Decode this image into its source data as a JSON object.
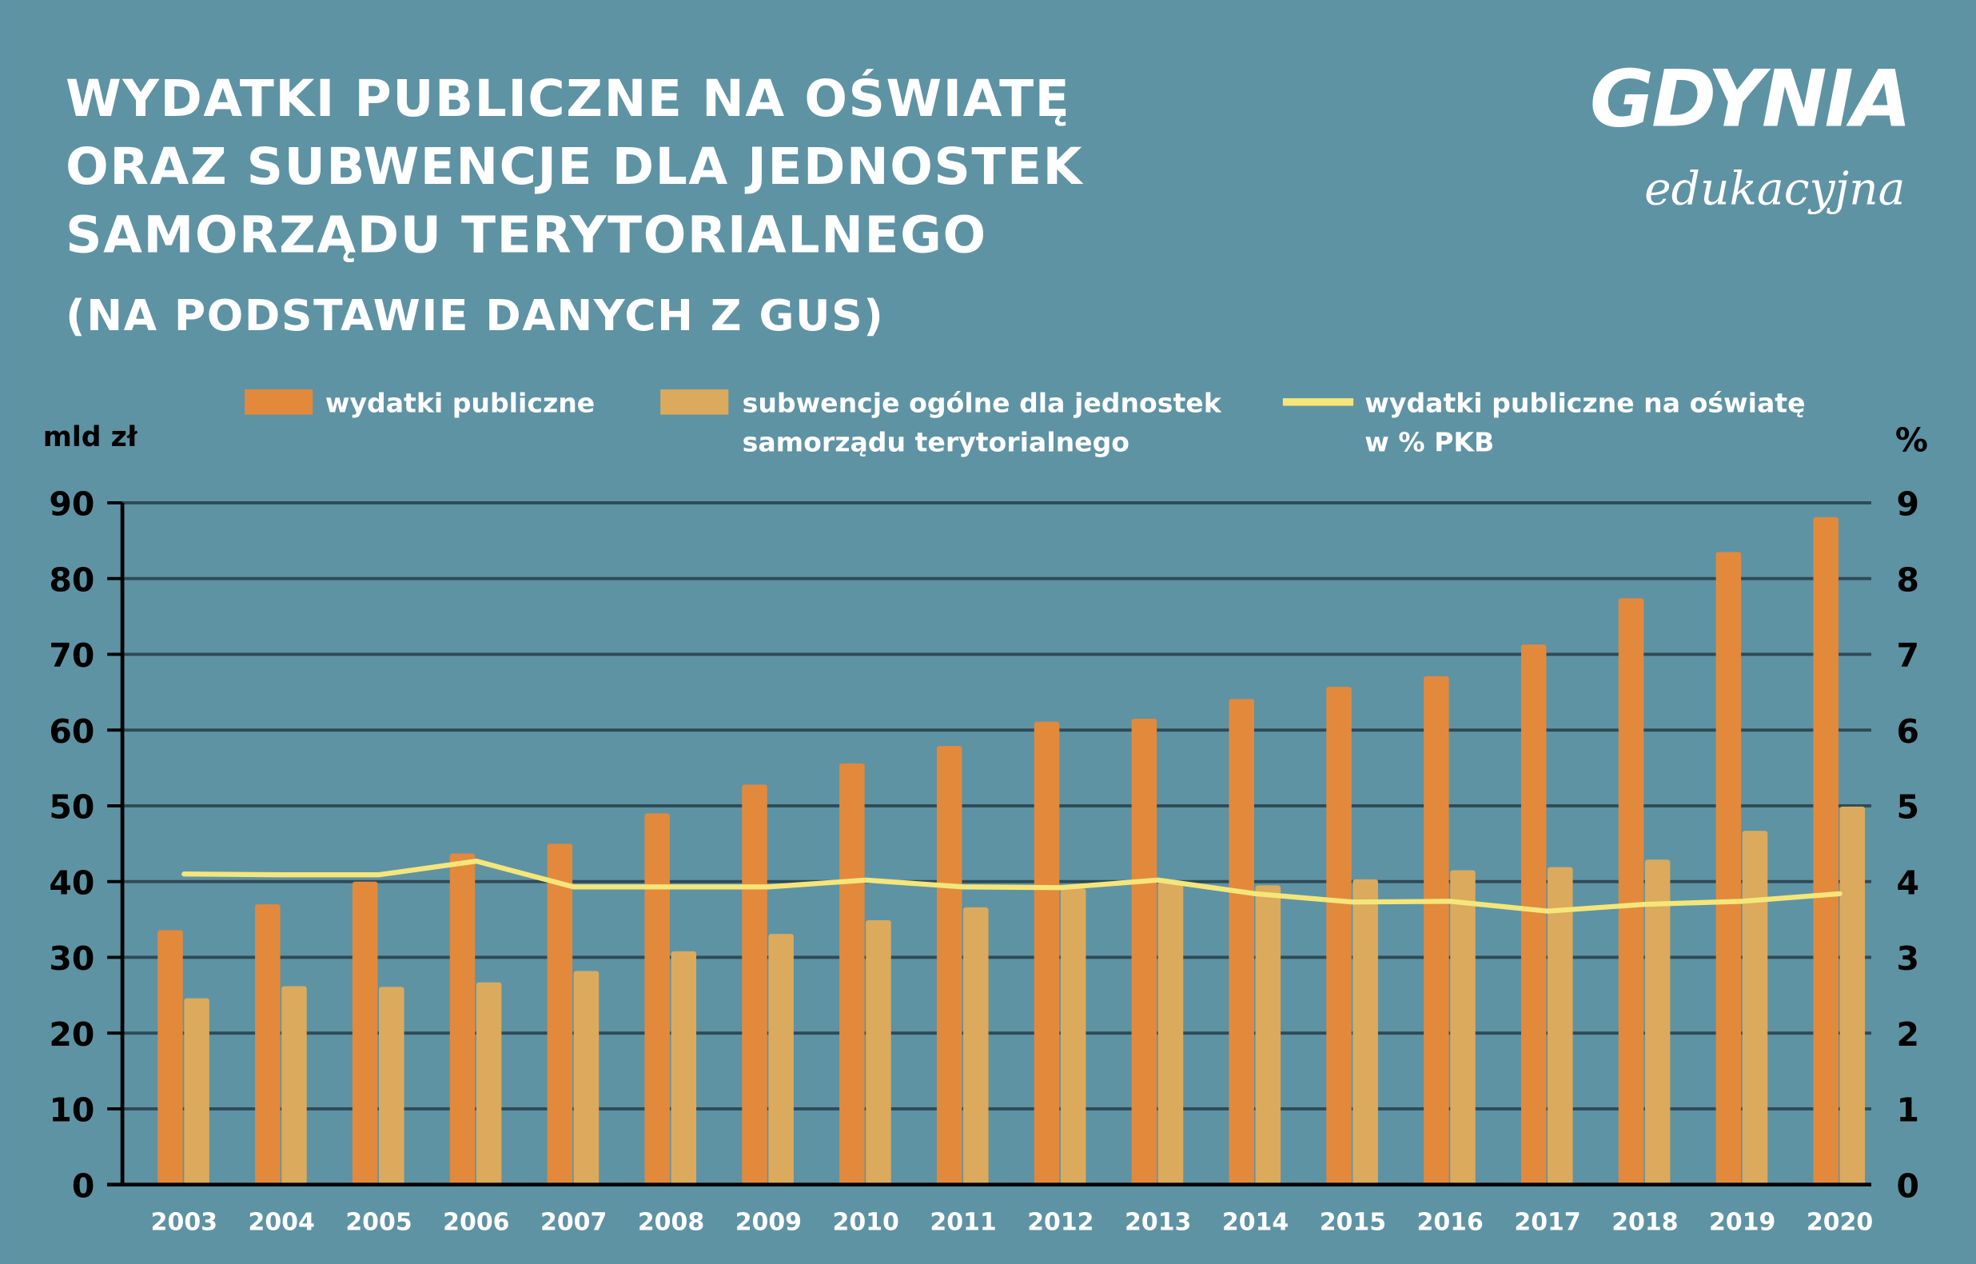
{
  "title_lines": [
    "WYDATKI PUBLICZNE NA OŚWIATĘ",
    "ORAZ SUBWENCJE DLA JEDNOSTEK",
    "SAMORZĄDU TERYTORIALNEGO"
  ],
  "subtitle": "(NA PODSTAWIE DANYCH Z GUS)",
  "logo": {
    "main": "GDYNIA",
    "sub": "edukacyjna"
  },
  "colors": {
    "background": "#5e93a4",
    "orange": "#e3893c",
    "light": "#dcaa5c",
    "line": "#f5e67a",
    "grid": "#2e4a55"
  },
  "chart_data": {
    "type": "bar",
    "title": "WYDATKI PUBLICZNE NA OŚWIATĘ ORAZ SUBWENCJE DLA JEDNOSTEK SAMORZĄDU TERYTORIALNEGO",
    "ylabel": "mld zł",
    "y2label": "%",
    "ylim": [
      0,
      90
    ],
    "y2lim": [
      0,
      9
    ],
    "yticks": [
      "0",
      "10",
      "20",
      "30",
      "40",
      "50",
      "60",
      "70",
      "80",
      "90"
    ],
    "y2ticks": [
      "0",
      "1",
      "2",
      "3",
      "4",
      "5",
      "6",
      "7",
      "8",
      "9"
    ],
    "grid": true,
    "legend_placement": "top",
    "categories": [
      "2003",
      "2004",
      "2005",
      "2006",
      "2007",
      "2008",
      "2009",
      "2010",
      "2011",
      "2012",
      "2013",
      "2014",
      "2015",
      "2016",
      "2017",
      "2018",
      "2019",
      "2020"
    ],
    "series": [
      {
        "name": "wydatki publiczne",
        "type": "bar",
        "axis": "left",
        "color": "#e3893c",
        "values": [
          33.6,
          37.0,
          40.0,
          43.7,
          45.0,
          49.0,
          52.8,
          55.6,
          57.9,
          61.1,
          61.5,
          64.1,
          65.7,
          67.1,
          71.3,
          77.4,
          83.5,
          88.1
        ]
      },
      {
        "name": "subwencje ogólne dla jednostek samorządu terytorialnego",
        "name_lines": [
          "subwencje ogólne dla jednostek",
          "samorządu terytorialnego"
        ],
        "type": "bar",
        "axis": "left",
        "color": "#dcaa5c",
        "values": [
          24.6,
          26.2,
          26.1,
          26.7,
          28.2,
          30.8,
          33.1,
          34.9,
          36.6,
          39.1,
          40.0,
          39.5,
          40.3,
          41.5,
          41.9,
          42.9,
          46.7,
          49.9
        ]
      },
      {
        "name": "wydatki publiczne na oświatę w % PKB",
        "name_lines": [
          "wydatki publiczne na oświatę",
          "w % PKB"
        ],
        "type": "line",
        "axis": "right",
        "color": "#f5e67a",
        "values": [
          4.1,
          4.09,
          4.09,
          4.27,
          3.93,
          3.93,
          3.93,
          4.02,
          3.93,
          3.92,
          4.02,
          3.84,
          3.73,
          3.74,
          3.61,
          3.7,
          3.74,
          3.84
        ]
      }
    ]
  }
}
